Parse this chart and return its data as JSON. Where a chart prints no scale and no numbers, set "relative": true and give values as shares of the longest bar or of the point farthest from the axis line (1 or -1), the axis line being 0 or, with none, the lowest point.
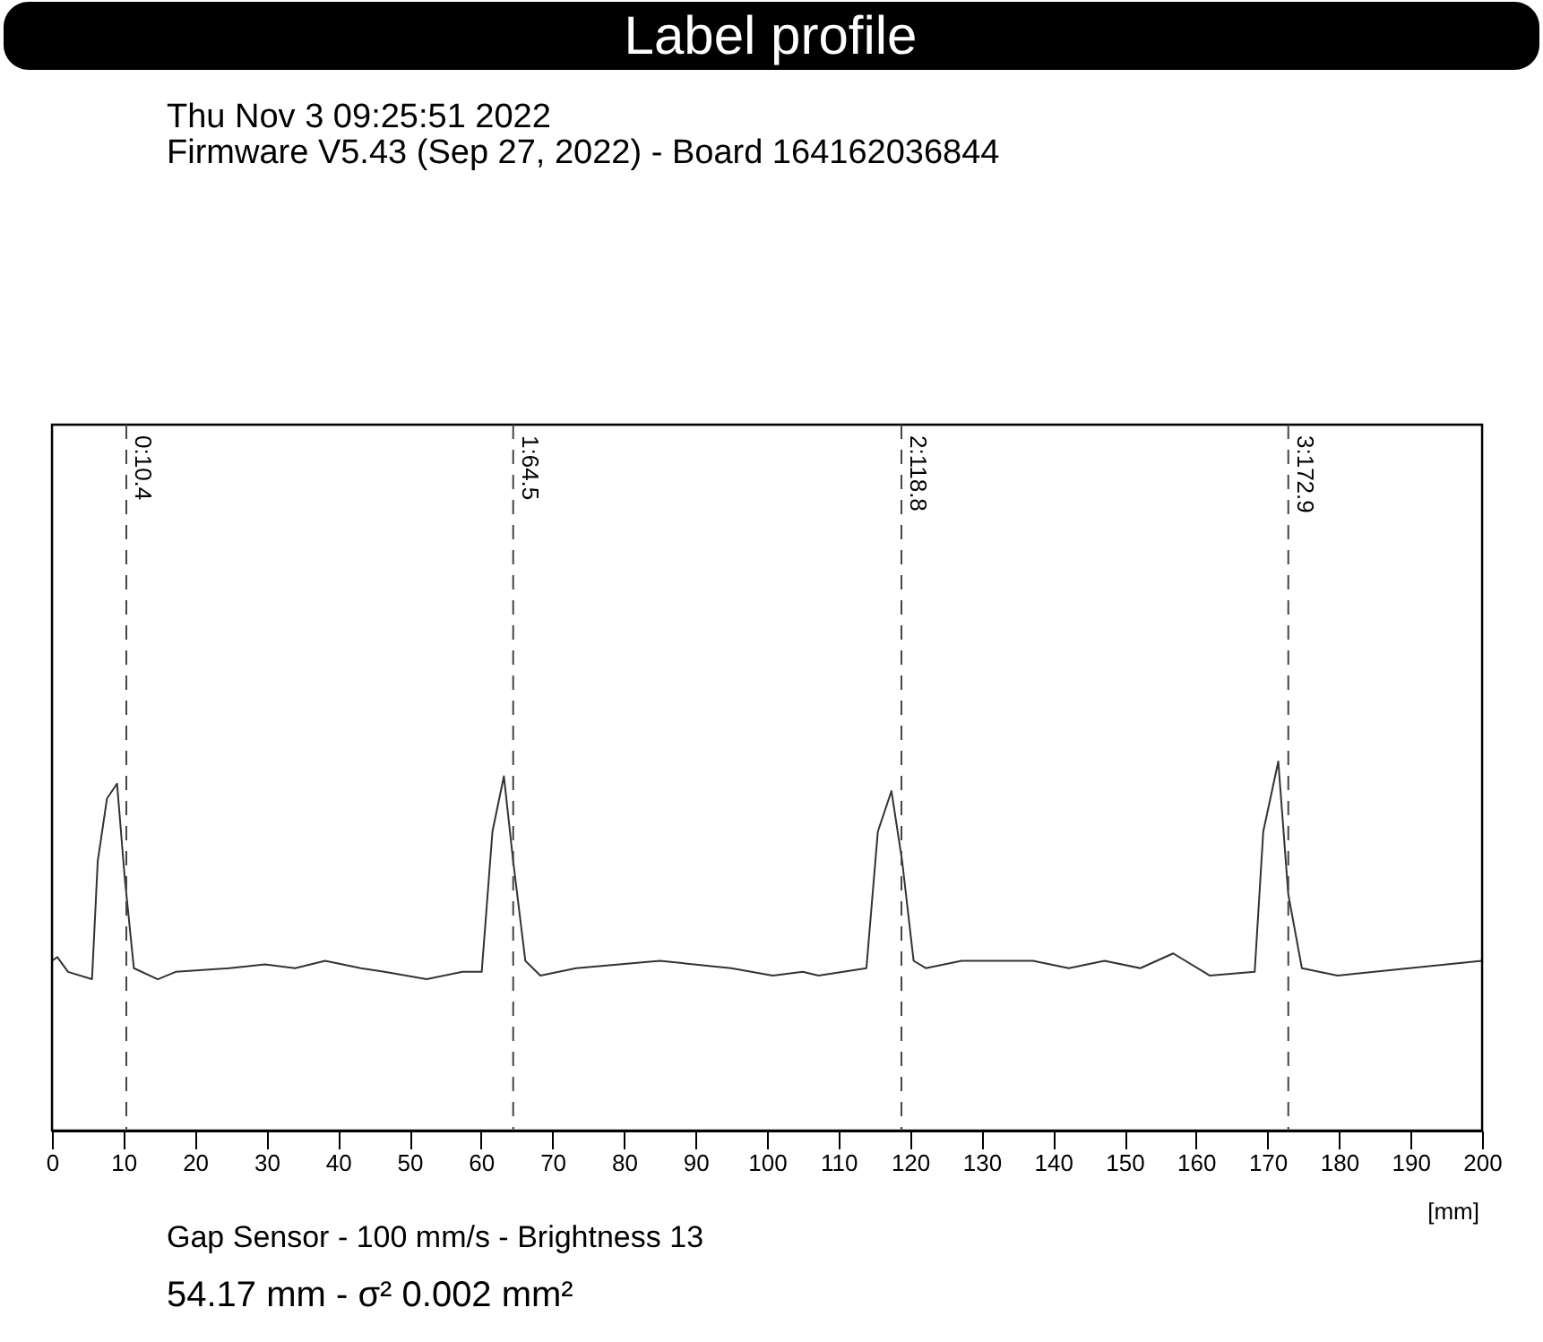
{
  "chart_data": {
    "type": "line",
    "title": "Label profile",
    "relative": true,
    "color": "#333333",
    "line_style": "solid",
    "marker": "none",
    "grid": false,
    "tick_labels": "x",
    "xlabel": "[mm]",
    "annotations": [
      "Thu Nov  3 09:25:51 2022",
      "Firmware V5.43 (Sep 27, 2022) - Board 164162036844",
      "Gap Sensor - 100 mm/s - Brightness 13",
      "54.17 mm - σ² 0.002 mm²"
    ],
    "xlim": [
      0,
      200
    ],
    "xticks": [
      0,
      10,
      20,
      30,
      40,
      50,
      60,
      70,
      80,
      90,
      100,
      110,
      120,
      130,
      140,
      150,
      160,
      170,
      180,
      190,
      200
    ],
    "ref_lines": [
      {
        "axis": "x",
        "value": 10.4,
        "label": "0:10.4",
        "line_style": "dashed"
      },
      {
        "axis": "x",
        "value": 64.5,
        "label": "1:64.5",
        "line_style": "dashed"
      },
      {
        "axis": "x",
        "value": 118.8,
        "label": "2:118.8",
        "line_style": "dashed"
      },
      {
        "axis": "x",
        "value": 172.9,
        "label": "3:172.9",
        "line_style": "dashed"
      }
    ],
    "x": [
      0,
      0.75,
      2.25,
      5.6,
      6.4,
      7.7,
      9.1,
      10.2,
      11.45,
      14.8,
      17.3,
      24.8,
      29.8,
      34.0,
      38.2,
      43.2,
      46.5,
      52.4,
      57.4,
      60.1,
      61.6,
      63.2,
      64.5,
      66.2,
      68.3,
      73.3,
      85.0,
      95.0,
      100.8,
      105.0,
      107.2,
      113.9,
      115.5,
      117.4,
      118.9,
      120.5,
      122.2,
      127.2,
      137.2,
      142.2,
      147.2,
      152.2,
      156.8,
      161.9,
      168.2,
      169.4,
      171.5,
      172.9,
      174.8,
      179.8,
      189.8,
      200
    ],
    "values": [
      0.46,
      0.47,
      0.43,
      0.41,
      0.73,
      0.9,
      0.94,
      0.68,
      0.44,
      0.41,
      0.43,
      0.44,
      0.45,
      0.44,
      0.46,
      0.44,
      0.43,
      0.41,
      0.43,
      0.43,
      0.81,
      0.96,
      0.73,
      0.46,
      0.42,
      0.44,
      0.46,
      0.44,
      0.42,
      0.43,
      0.42,
      0.44,
      0.81,
      0.92,
      0.73,
      0.46,
      0.44,
      0.46,
      0.46,
      0.44,
      0.46,
      0.44,
      0.48,
      0.42,
      0.43,
      0.81,
      1,
      0.64,
      0.44,
      0.42,
      0.44,
      0.46
    ]
  }
}
